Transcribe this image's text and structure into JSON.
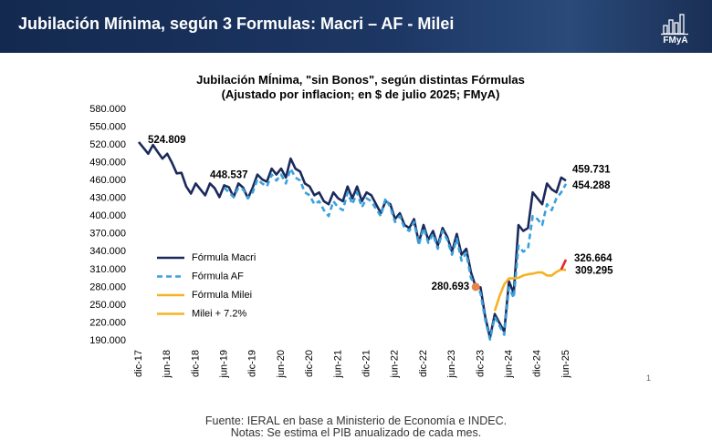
{
  "header": {
    "title": "Jubilación Mínima, según 3 Formulas: Macri – AF - Milei",
    "logo": "FMyA"
  },
  "chart_data": {
    "type": "line",
    "title": "Jubilación MÍnima, \"sin Bonos\", según distintas Fórmulas",
    "subtitle": "(Ajustado por inflacion; en $ de julio 2025; FMyA)",
    "categories": [
      "dic-17",
      null,
      null,
      null,
      null,
      null,
      "jun-18",
      null,
      null,
      null,
      null,
      null,
      "dic-18",
      null,
      null,
      null,
      null,
      null,
      "jun-19",
      null,
      null,
      null,
      null,
      null,
      "dic-19",
      null,
      null,
      null,
      null,
      null,
      "jun-20",
      null,
      null,
      null,
      null,
      null,
      "dic-20",
      null,
      null,
      null,
      null,
      null,
      "jun-21",
      null,
      null,
      null,
      null,
      null,
      "dic-21",
      null,
      null,
      null,
      null,
      null,
      "jun-22",
      null,
      null,
      null,
      null,
      null,
      "dic-22",
      null,
      null,
      null,
      null,
      null,
      "jun-23",
      null,
      null,
      null,
      null,
      null,
      "dic-23",
      null,
      null,
      null,
      null,
      null,
      "jun-24",
      null,
      null,
      null,
      null,
      null,
      "dic-24",
      null,
      null,
      null,
      null,
      null,
      "jun-25"
    ],
    "series": [
      {
        "name": "Fórmula Macri",
        "color": "#1b2a5a",
        "dash": false,
        "values": [
          524809,
          515000,
          505000,
          520000,
          508000,
          497000,
          505000,
          490000,
          472000,
          473000,
          450000,
          438000,
          455000,
          445000,
          435000,
          455000,
          447000,
          432000,
          452000,
          448537,
          432000,
          455000,
          448000,
          430000,
          448000,
          470000,
          462000,
          458000,
          480000,
          470000,
          480000,
          465000,
          497000,
          480000,
          475000,
          455000,
          450000,
          435000,
          440000,
          425000,
          420000,
          440000,
          430000,
          425000,
          450000,
          430000,
          450000,
          425000,
          440000,
          435000,
          420000,
          405000,
          425000,
          420000,
          395000,
          405000,
          385000,
          380000,
          395000,
          355000,
          385000,
          360000,
          375000,
          350000,
          380000,
          365000,
          340000,
          370000,
          335000,
          345000,
          305000,
          280693,
          280000,
          230000,
          195000,
          235000,
          220000,
          205000,
          290000,
          270000,
          385000,
          375000,
          380000,
          440000,
          430000,
          420000,
          455000,
          445000,
          440000,
          465000,
          459731
        ],
        "value_labels": [
          "524.809",
          null,
          null,
          null,
          null,
          null,
          null,
          null,
          null,
          null,
          null,
          null,
          null,
          null,
          null,
          null,
          null,
          null,
          null,
          "448.537",
          null,
          null,
          null,
          null,
          null,
          null,
          null,
          null,
          null,
          null,
          null,
          null,
          null,
          null,
          null,
          null,
          null,
          null,
          null,
          null,
          null,
          null,
          null,
          null,
          null,
          null,
          null,
          null,
          null,
          null,
          null,
          null,
          null,
          null,
          null,
          null,
          null,
          null,
          null,
          null,
          null,
          null,
          null,
          null,
          null,
          null,
          null,
          null,
          null,
          null,
          null,
          "280.693",
          null,
          null,
          null,
          null,
          null,
          null,
          null,
          null,
          null,
          null,
          null,
          null,
          null,
          null,
          null,
          null,
          null,
          null,
          "459.731"
        ]
      },
      {
        "name": "Fórmula AF",
        "color": "#3aa0dc",
        "dash": true,
        "values": [
          null,
          null,
          null,
          null,
          null,
          null,
          null,
          null,
          null,
          null,
          null,
          null,
          null,
          null,
          null,
          null,
          null,
          null,
          448000,
          440000,
          432000,
          448000,
          445000,
          430000,
          440000,
          462000,
          455000,
          450000,
          470000,
          460000,
          470000,
          455000,
          480000,
          465000,
          460000,
          440000,
          435000,
          420000,
          425000,
          410000,
          400000,
          425000,
          415000,
          410000,
          440000,
          420000,
          440000,
          415000,
          430000,
          425000,
          412000,
          400000,
          430000,
          415000,
          390000,
          400000,
          380000,
          375000,
          390000,
          352000,
          380000,
          355000,
          370000,
          345000,
          375000,
          360000,
          335000,
          362000,
          325000,
          338000,
          295000,
          285000,
          270000,
          225000,
          192000,
          230000,
          215000,
          200000,
          280000,
          262000,
          350000,
          340000,
          345000,
          400000,
          395000,
          385000,
          420000,
          410000,
          430000,
          440000,
          454288
        ],
        "value_labels": [
          null,
          null,
          null,
          null,
          null,
          null,
          null,
          null,
          null,
          null,
          null,
          null,
          null,
          null,
          null,
          null,
          null,
          null,
          null,
          null,
          null,
          null,
          null,
          null,
          null,
          null,
          null,
          null,
          null,
          null,
          null,
          null,
          null,
          null,
          null,
          null,
          null,
          null,
          null,
          null,
          null,
          null,
          null,
          null,
          null,
          null,
          null,
          null,
          null,
          null,
          null,
          null,
          null,
          null,
          null,
          null,
          null,
          null,
          null,
          null,
          null,
          null,
          null,
          null,
          null,
          null,
          null,
          null,
          null,
          null,
          null,
          null,
          null,
          null,
          null,
          null,
          null,
          null,
          null,
          null,
          null,
          null,
          null,
          null,
          null,
          null,
          null,
          null,
          null,
          null,
          "454.288"
        ]
      },
      {
        "name": "Fórmula Milei",
        "color": "#f5b324",
        "dash": false,
        "values": [
          null,
          null,
          null,
          null,
          null,
          null,
          null,
          null,
          null,
          null,
          null,
          null,
          null,
          null,
          null,
          null,
          null,
          null,
          null,
          null,
          null,
          null,
          null,
          null,
          null,
          null,
          null,
          null,
          null,
          null,
          null,
          null,
          null,
          null,
          null,
          null,
          null,
          null,
          null,
          null,
          null,
          null,
          null,
          null,
          null,
          null,
          null,
          null,
          null,
          null,
          null,
          null,
          null,
          null,
          null,
          null,
          null,
          null,
          null,
          null,
          null,
          null,
          null,
          null,
          null,
          null,
          null,
          null,
          null,
          null,
          null,
          null,
          null,
          null,
          null,
          240000,
          265000,
          285000,
          295000,
          295000,
          296000,
          300000,
          302000,
          303000,
          305000,
          305000,
          300000,
          300000,
          306000,
          310000,
          309295
        ],
        "value_labels": [
          null,
          null,
          null,
          null,
          null,
          null,
          null,
          null,
          null,
          null,
          null,
          null,
          null,
          null,
          null,
          null,
          null,
          null,
          null,
          null,
          null,
          null,
          null,
          null,
          null,
          null,
          null,
          null,
          null,
          null,
          null,
          null,
          null,
          null,
          null,
          null,
          null,
          null,
          null,
          null,
          null,
          null,
          null,
          null,
          null,
          null,
          null,
          null,
          null,
          null,
          null,
          null,
          null,
          null,
          null,
          null,
          null,
          null,
          null,
          null,
          null,
          null,
          null,
          null,
          null,
          null,
          null,
          null,
          null,
          null,
          null,
          null,
          null,
          null,
          null,
          null,
          null,
          null,
          null,
          null,
          null,
          null,
          null,
          null,
          null,
          null,
          null,
          null,
          null,
          null,
          "309.295"
        ]
      },
      {
        "name": "Milei + 7.2%",
        "color": "#e8262c",
        "dash": false,
        "values": [
          null,
          null,
          null,
          null,
          null,
          null,
          null,
          null,
          null,
          null,
          null,
          null,
          null,
          null,
          null,
          null,
          null,
          null,
          null,
          null,
          null,
          null,
          null,
          null,
          null,
          null,
          null,
          null,
          null,
          null,
          null,
          null,
          null,
          null,
          null,
          null,
          null,
          null,
          null,
          null,
          null,
          null,
          null,
          null,
          null,
          null,
          null,
          null,
          null,
          null,
          null,
          null,
          null,
          null,
          null,
          null,
          null,
          null,
          null,
          null,
          null,
          null,
          null,
          null,
          null,
          null,
          null,
          null,
          null,
          null,
          null,
          null,
          null,
          null,
          null,
          null,
          null,
          null,
          null,
          null,
          null,
          null,
          null,
          null,
          null,
          null,
          null,
          null,
          null,
          310000,
          326664
        ],
        "value_labels": [
          null,
          null,
          null,
          null,
          null,
          null,
          null,
          null,
          null,
          null,
          null,
          null,
          null,
          null,
          null,
          null,
          null,
          null,
          null,
          null,
          null,
          null,
          null,
          null,
          null,
          null,
          null,
          null,
          null,
          null,
          null,
          null,
          null,
          null,
          null,
          null,
          null,
          null,
          null,
          null,
          null,
          null,
          null,
          null,
          null,
          null,
          null,
          null,
          null,
          null,
          null,
          null,
          null,
          null,
          null,
          null,
          null,
          null,
          null,
          null,
          null,
          null,
          null,
          null,
          null,
          null,
          null,
          null,
          null,
          null,
          null,
          null,
          null,
          null,
          null,
          null,
          null,
          null,
          null,
          null,
          null,
          null,
          null,
          null,
          null,
          null,
          null,
          null,
          null,
          null,
          "326.664"
        ]
      }
    ],
    "ylim": [
      190000,
      580000
    ],
    "yticks": [
      {
        "value": 190000,
        "label": "190.000"
      },
      {
        "value": 220000,
        "label": "220.000"
      },
      {
        "value": 250000,
        "label": "250.000"
      },
      {
        "value": 280000,
        "label": "280.000"
      },
      {
        "value": 310000,
        "label": "310.000"
      },
      {
        "value": 340000,
        "label": "340.000"
      },
      {
        "value": 370000,
        "label": "370.000"
      },
      {
        "value": 400000,
        "label": "400.000"
      },
      {
        "value": 430000,
        "label": "430.000"
      },
      {
        "value": 460000,
        "label": "460.000"
      },
      {
        "value": 490000,
        "label": "490.000"
      },
      {
        "value": 520000,
        "label": "520.000"
      },
      {
        "value": 550000,
        "label": "550.000"
      },
      {
        "value": 580000,
        "label": "580.000"
      }
    ],
    "grid": false,
    "legend": "lower left"
  },
  "footer": {
    "source": "Fuente: IERAL en base a Ministerio de Economía e INDEC.",
    "note": "Notas: Se estima el PIB anualizado de cada mes.",
    "page": "1"
  }
}
